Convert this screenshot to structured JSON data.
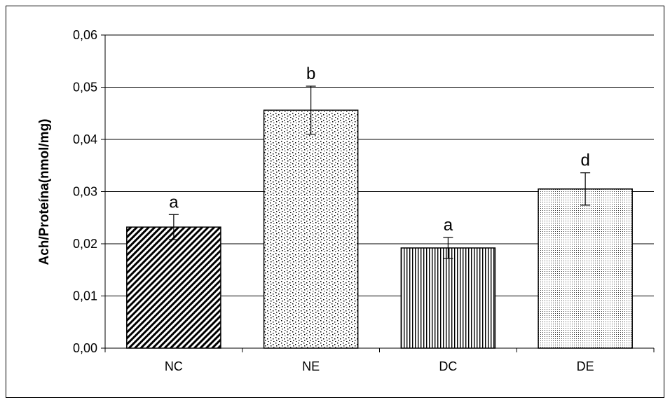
{
  "chart_data": {
    "type": "bar",
    "title": "",
    "xlabel": "",
    "ylabel": "Ach/Proteína(nmol/mg)",
    "ylim": [
      0,
      0.06
    ],
    "y_ticks": [
      "0,00",
      "0,01",
      "0,02",
      "0,03",
      "0,04",
      "0,05",
      "0,06"
    ],
    "y_tick_values": [
      0,
      0.01,
      0.02,
      0.03,
      0.04,
      0.05,
      0.06
    ],
    "grid": true,
    "categories": [
      "NC",
      "NE",
      "DC",
      "DE"
    ],
    "values": [
      0.0232,
      0.0456,
      0.0192,
      0.0305
    ],
    "errors": [
      0.0024,
      0.0046,
      0.002,
      0.0031
    ],
    "significance_labels": [
      "a",
      "b",
      "a",
      "d"
    ],
    "patterns": [
      "diagonal-hatch",
      "sparse-dots",
      "vertical-lines",
      "dense-dots"
    ]
  }
}
